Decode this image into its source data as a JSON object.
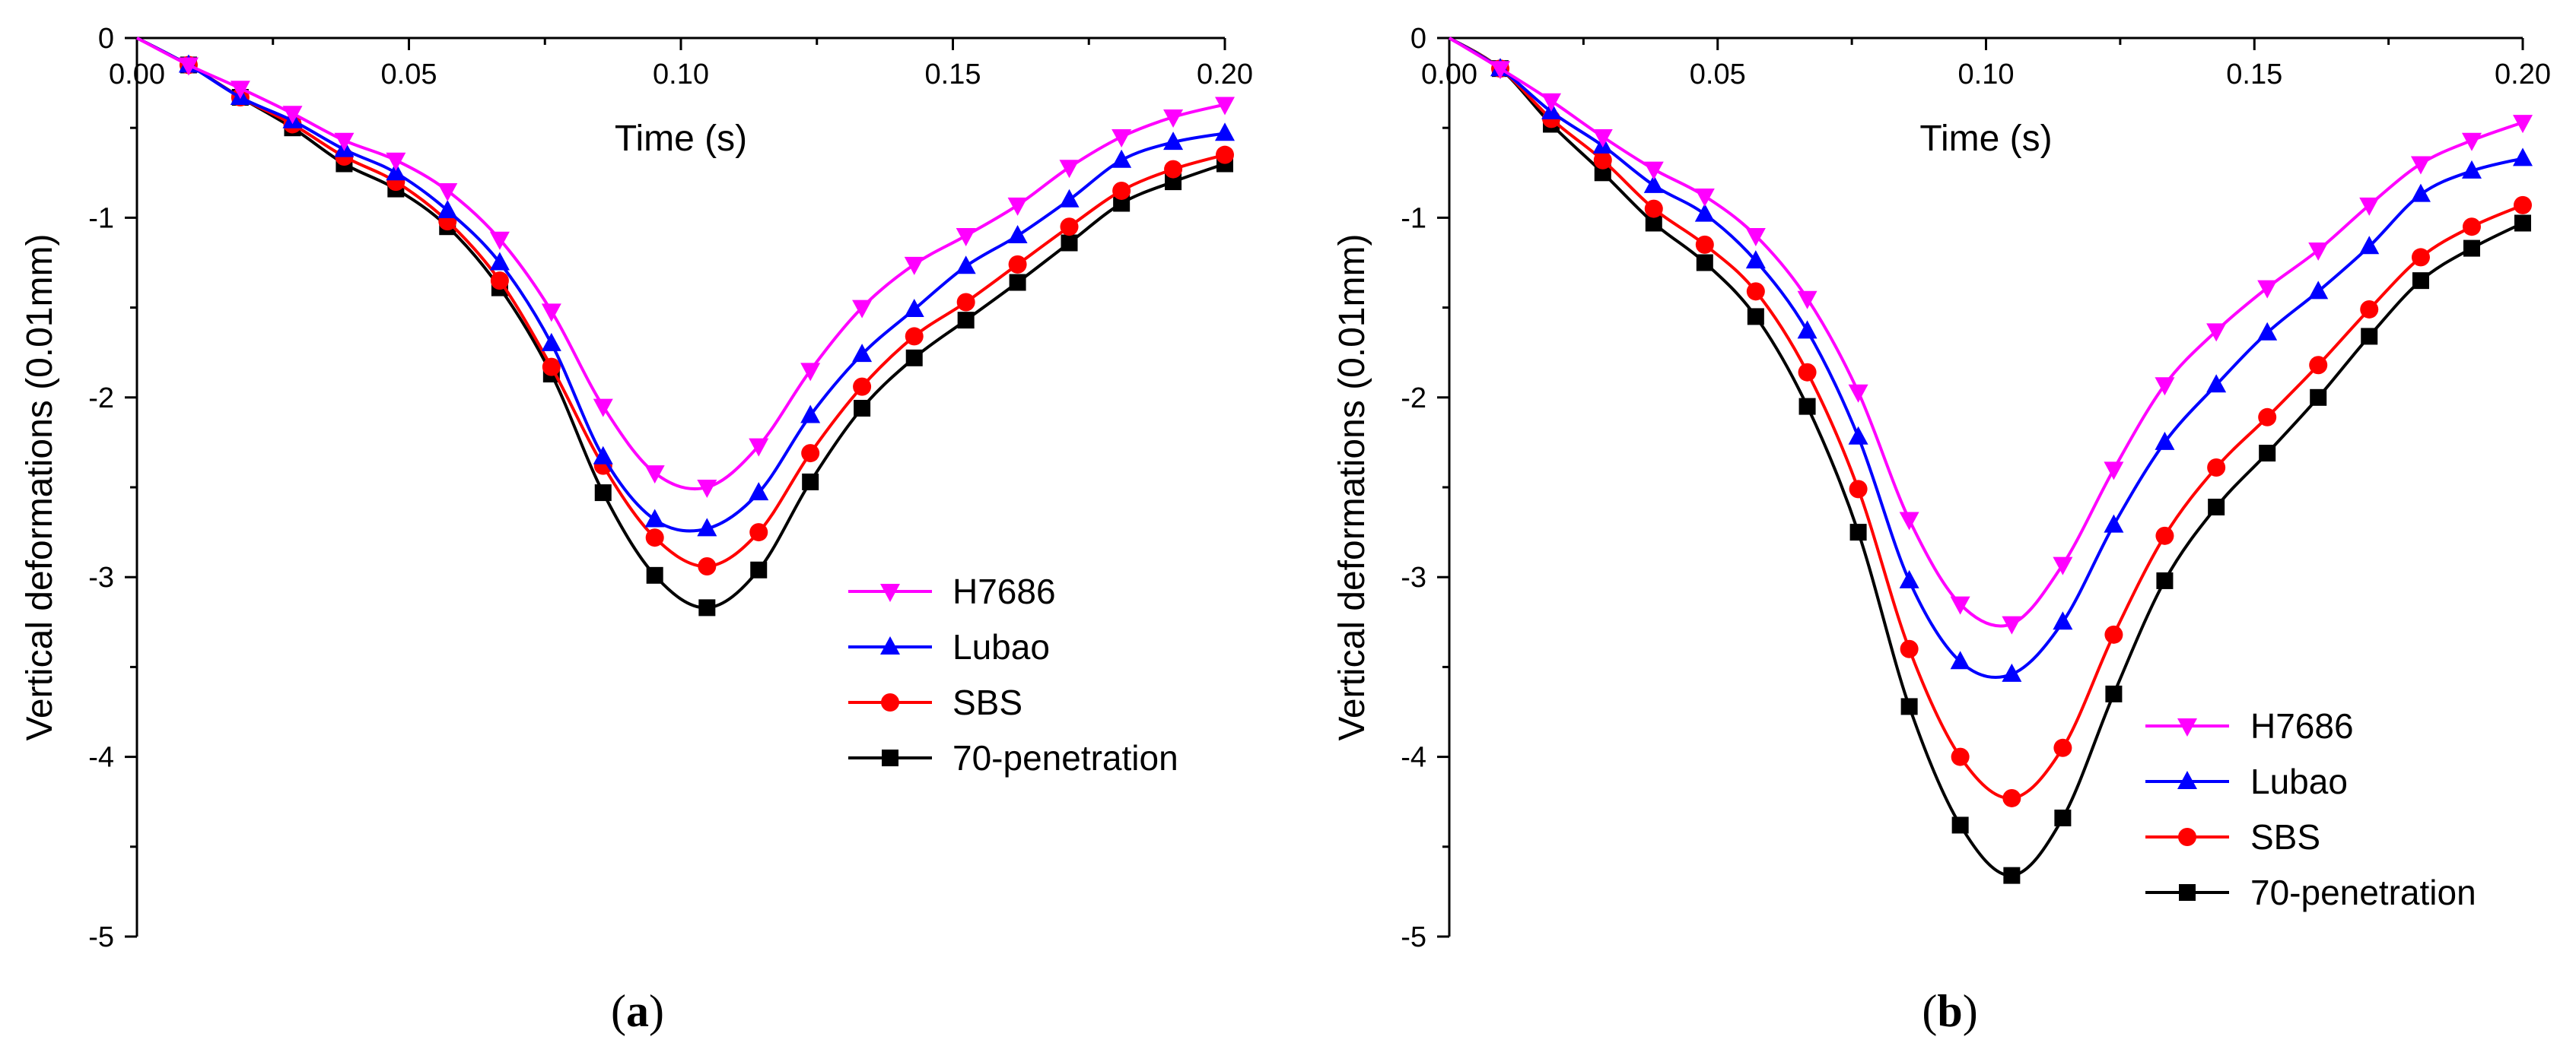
{
  "figure": {
    "panels": [
      "a",
      "b"
    ]
  },
  "chart_data": [
    {
      "type": "line",
      "panel_label": "a",
      "xlabel": "Time (s)",
      "ylabel": "Vertical deformations (0.01mm)",
      "xlim": [
        0,
        0.2
      ],
      "ylim": [
        -5,
        0
      ],
      "xticks": [
        "0.00",
        "0.05",
        "0.10",
        "0.15",
        "0.20"
      ],
      "yticks": [
        "0",
        "-1",
        "-2",
        "-3",
        "-4",
        "-5"
      ],
      "legend_position": "lower-right",
      "x": [
        0.0,
        0.0095,
        0.019,
        0.0286,
        0.0381,
        0.0476,
        0.0571,
        0.0667,
        0.0762,
        0.0857,
        0.0952,
        0.1048,
        0.1143,
        0.1238,
        0.1333,
        0.1429,
        0.1524,
        0.1619,
        0.1714,
        0.181,
        0.1905,
        0.2
      ],
      "series": [
        {
          "name": "H7686",
          "color": "#ff00ff",
          "marker": "triangle-down",
          "values": [
            0.0,
            -0.15,
            -0.28,
            -0.42,
            -0.57,
            -0.68,
            -0.85,
            -1.12,
            -1.52,
            -2.05,
            -2.42,
            -2.5,
            -2.27,
            -1.85,
            -1.5,
            -1.26,
            -1.1,
            -0.93,
            -0.72,
            -0.55,
            -0.44,
            -0.37
          ]
        },
        {
          "name": "Lubao",
          "color": "#0000ff",
          "marker": "triangle-up",
          "values": [
            0.0,
            -0.15,
            -0.33,
            -0.46,
            -0.62,
            -0.75,
            -0.96,
            -1.25,
            -1.7,
            -2.33,
            -2.68,
            -2.73,
            -2.53,
            -2.1,
            -1.76,
            -1.51,
            -1.27,
            -1.1,
            -0.9,
            -0.68,
            -0.58,
            -0.53
          ]
        },
        {
          "name": "SBS",
          "color": "#ff0000",
          "marker": "circle",
          "values": [
            0.0,
            -0.15,
            -0.33,
            -0.48,
            -0.66,
            -0.8,
            -1.02,
            -1.35,
            -1.83,
            -2.38,
            -2.78,
            -2.94,
            -2.75,
            -2.31,
            -1.94,
            -1.66,
            -1.47,
            -1.26,
            -1.05,
            -0.85,
            -0.73,
            -0.65
          ]
        },
        {
          "name": "70-penetration",
          "color": "#000000",
          "marker": "square",
          "values": [
            0.0,
            -0.15,
            -0.33,
            -0.5,
            -0.7,
            -0.84,
            -1.05,
            -1.39,
            -1.87,
            -2.53,
            -2.99,
            -3.17,
            -2.96,
            -2.47,
            -2.06,
            -1.78,
            -1.57,
            -1.36,
            -1.14,
            -0.92,
            -0.8,
            -0.7
          ]
        }
      ]
    },
    {
      "type": "line",
      "panel_label": "b",
      "xlabel": "Time (s)",
      "ylabel": "Vertical deformations (0.01mm)",
      "xlim": [
        0,
        0.2
      ],
      "ylim": [
        -5,
        0
      ],
      "xticks": [
        "0.00",
        "0.05",
        "0.10",
        "0.15",
        "0.20"
      ],
      "yticks": [
        "0",
        "-1",
        "-2",
        "-3",
        "-4",
        "-5"
      ],
      "legend_position": "lower-right",
      "x": [
        0.0,
        0.0095,
        0.019,
        0.0286,
        0.0381,
        0.0476,
        0.0571,
        0.0667,
        0.0762,
        0.0857,
        0.0952,
        0.1048,
        0.1143,
        0.1238,
        0.1333,
        0.1429,
        0.1524,
        0.1619,
        0.1714,
        0.181,
        0.1905,
        0.2
      ],
      "series": [
        {
          "name": "H7686",
          "color": "#ff00ff",
          "marker": "triangle-down",
          "values": [
            0.0,
            -0.17,
            -0.35,
            -0.55,
            -0.73,
            -0.88,
            -1.1,
            -1.45,
            -1.97,
            -2.68,
            -3.15,
            -3.26,
            -2.93,
            -2.4,
            -1.93,
            -1.63,
            -1.39,
            -1.18,
            -0.93,
            -0.7,
            -0.57,
            -0.47
          ]
        },
        {
          "name": "Lubao",
          "color": "#0000ff",
          "marker": "triangle-up",
          "values": [
            0.0,
            -0.17,
            -0.41,
            -0.6,
            -0.82,
            -0.98,
            -1.24,
            -1.63,
            -2.22,
            -3.02,
            -3.47,
            -3.54,
            -3.25,
            -2.71,
            -2.25,
            -1.93,
            -1.64,
            -1.41,
            -1.16,
            -0.87,
            -0.74,
            -0.67
          ]
        },
        {
          "name": "SBS",
          "color": "#ff0000",
          "marker": "circle",
          "values": [
            0.0,
            -0.17,
            -0.45,
            -0.68,
            -0.95,
            -1.15,
            -1.41,
            -1.86,
            -2.51,
            -3.4,
            -4.0,
            -4.23,
            -3.95,
            -3.32,
            -2.77,
            -2.39,
            -2.11,
            -1.82,
            -1.51,
            -1.22,
            -1.05,
            -0.93
          ]
        },
        {
          "name": "70-penetration",
          "color": "#000000",
          "marker": "square",
          "values": [
            0.0,
            -0.17,
            -0.48,
            -0.75,
            -1.03,
            -1.25,
            -1.55,
            -2.05,
            -2.75,
            -3.72,
            -4.38,
            -4.66,
            -4.34,
            -3.65,
            -3.02,
            -2.61,
            -2.31,
            -2.0,
            -1.66,
            -1.35,
            -1.17,
            -1.03
          ]
        }
      ]
    }
  ]
}
